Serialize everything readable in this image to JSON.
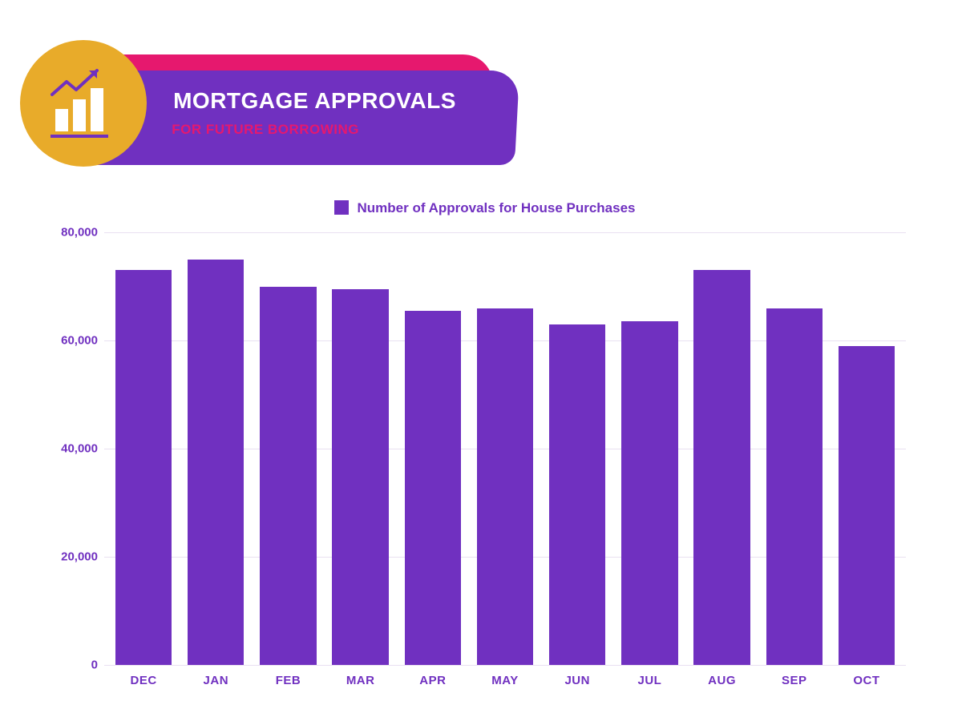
{
  "header": {
    "title": "MORTGAGE APPROVALS",
    "subtitle": "FOR FUTURE BORROWING",
    "banner_back_color": "#e6186e",
    "banner_front_color": "#7030c0",
    "title_color": "#ffffff",
    "subtitle_color": "#e6186e",
    "icon_circle_color": "#e8ab2a",
    "icon_bar_color": "#ffffff",
    "icon_arrow_color": "#7030c0",
    "icon_underline_color": "#7030c0"
  },
  "chart": {
    "type": "bar",
    "legend_label": "Number of Approvals for House Purchases",
    "legend_label_color": "#7030c0",
    "legend_swatch_color": "#7030c0",
    "categories": [
      "DEC",
      "JAN",
      "FEB",
      "MAR",
      "APR",
      "MAY",
      "JUN",
      "JUL",
      "AUG",
      "SEP",
      "OCT"
    ],
    "values": [
      73000,
      75000,
      70000,
      69500,
      65500,
      66000,
      63000,
      63500,
      73000,
      66000,
      59000
    ],
    "bar_color": "#7030c0",
    "ylim": [
      0,
      80000
    ],
    "ytick_step": 20000,
    "ytick_labels": [
      "0",
      "20,000",
      "40,000",
      "60,000",
      "80,000"
    ],
    "grid_color": "#e9e0f1",
    "axis_label_color": "#7030c0",
    "background_color": "#ffffff",
    "bar_width_ratio": 0.78,
    "label_fontsize": 15,
    "legend_fontsize": 17
  }
}
